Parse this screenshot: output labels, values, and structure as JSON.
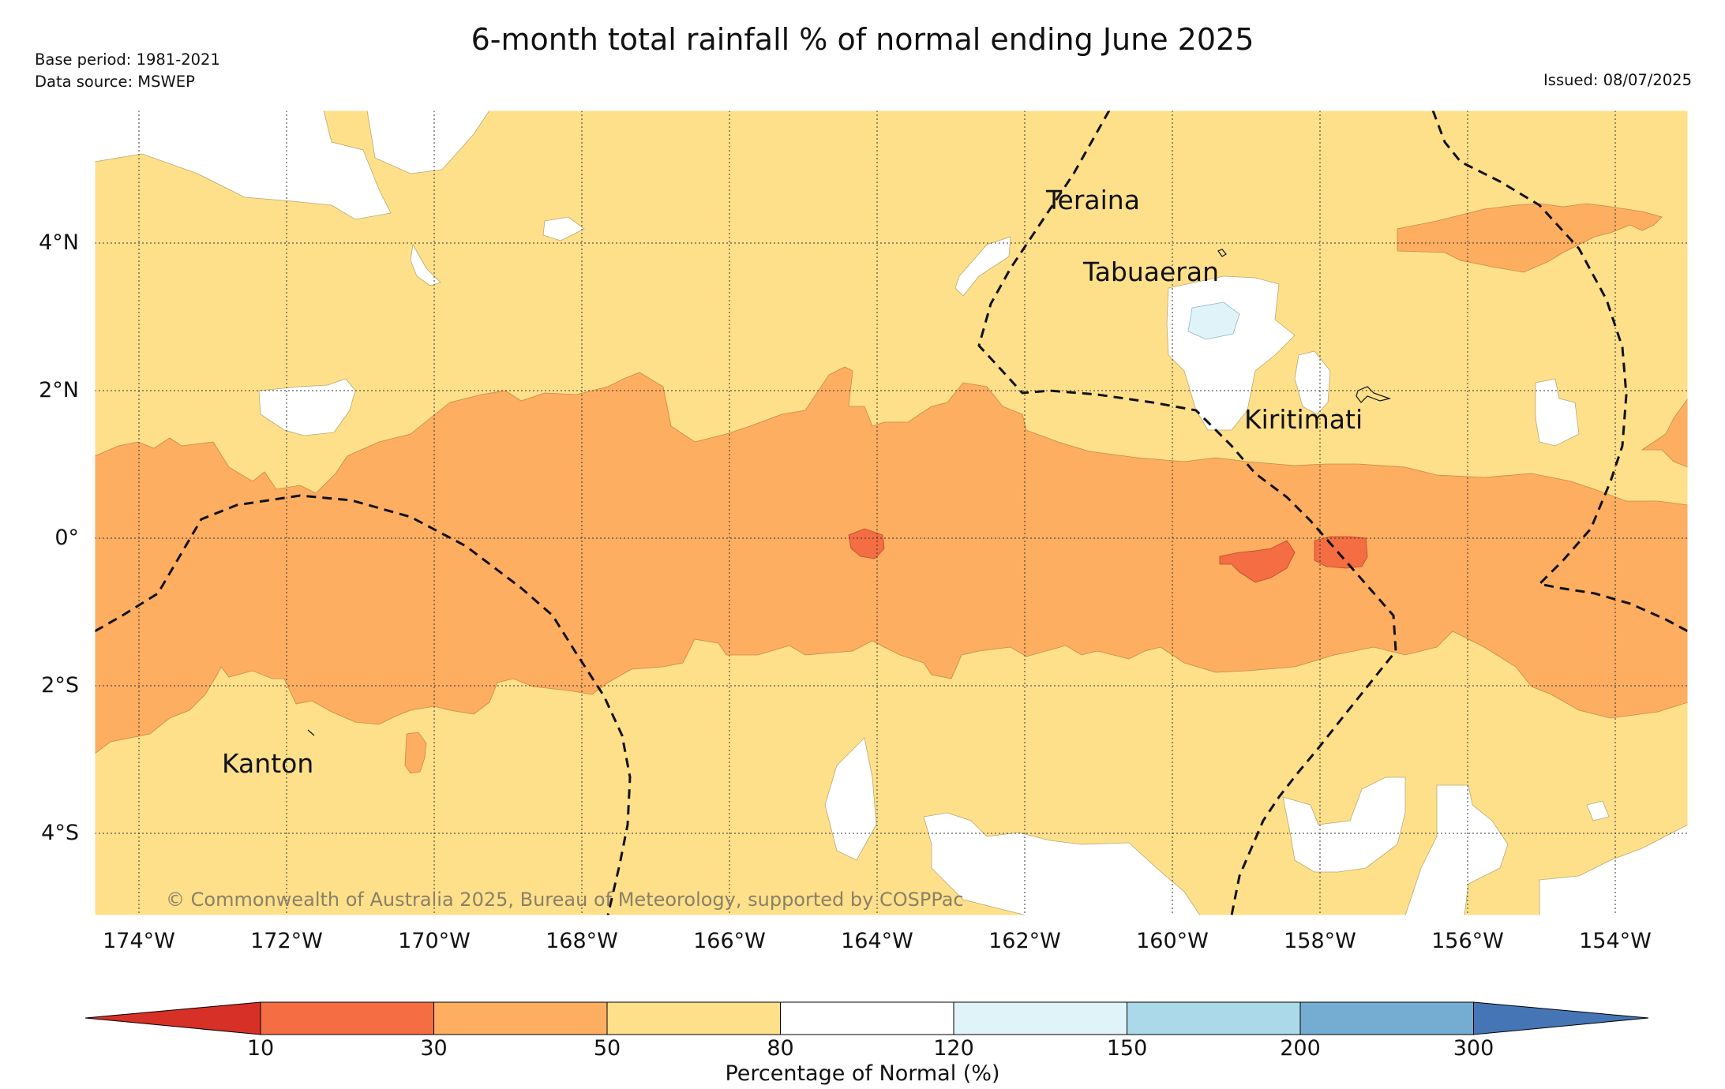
{
  "title": "6-month total rainfall % of normal ending June 2025",
  "meta": {
    "base_period": "Base period: 1981-2021",
    "data_source": "Data source: MSWEP",
    "issued": "Issued: 08/07/2025"
  },
  "map": {
    "latitude_labels": [
      "4°N",
      "2°N",
      "0°",
      "2°S",
      "4°S"
    ],
    "longitude_labels": [
      "174°W",
      "172°W",
      "170°W",
      "168°W",
      "166°W",
      "164°W",
      "162°W",
      "160°W",
      "158°W",
      "156°W",
      "154°W"
    ],
    "places": [
      "Teraina",
      "Tabuaeran",
      "Kiritimati",
      "Kanton"
    ],
    "copyright": "© Commonwealth of Australia 2025, Bureau of Meteorology, supported by COSPPac",
    "region_colors": {
      "10-30": "#f46d43",
      "30-50": "#fdae61",
      "50-80": "#fee08b",
      "80-120": "#ffffff",
      "120-150": "#e0f3f8"
    }
  },
  "colorbar": {
    "label": "Percentage of Normal (%)",
    "ticks": [
      "10",
      "30",
      "50",
      "80",
      "120",
      "150",
      "200",
      "300"
    ],
    "colors": [
      "#d73027",
      "#f46d43",
      "#fdae61",
      "#fee08b",
      "#ffffff",
      "#e0f3f8",
      "#abd9e9",
      "#74add1",
      "#4575b4"
    ]
  }
}
